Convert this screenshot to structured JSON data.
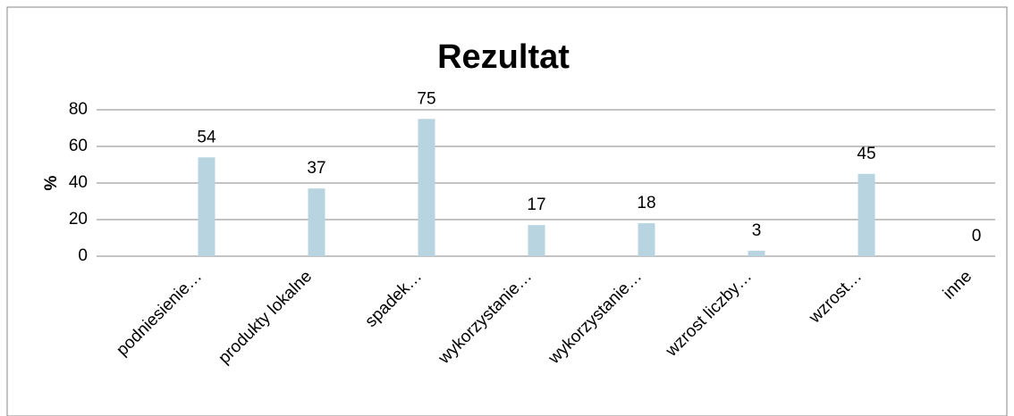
{
  "chart_data": {
    "type": "bar",
    "title": "Rezultat",
    "y_label": "%",
    "categories": [
      "podniesienie…",
      "produkty lokalne",
      "spadek…",
      "wykorzystanie…",
      "wykorzystanie…",
      "wzrost liczby…",
      "wzrost…",
      "inne"
    ],
    "values": [
      54,
      37,
      75,
      17,
      18,
      3,
      45,
      0
    ],
    "color": "#b7d4e0",
    "ylim": [
      0,
      80
    ],
    "yticks": [
      0,
      20,
      40,
      60,
      80
    ],
    "grid": true
  }
}
